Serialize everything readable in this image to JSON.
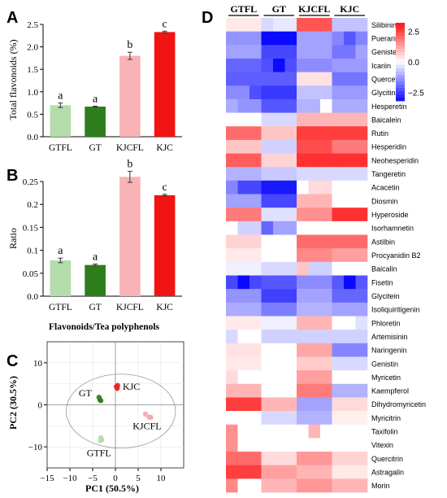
{
  "panels": {
    "A": "A",
    "B": "B",
    "C": "C",
    "D": "D"
  },
  "chart_data": [
    {
      "id": "A",
      "type": "bar",
      "categories": [
        "GTFL",
        "GT",
        "KJCFL",
        "KJC"
      ],
      "values": [
        0.7,
        0.67,
        1.8,
        2.33
      ],
      "errors": [
        0.05,
        0.01,
        0.08,
        0.02
      ],
      "letters": [
        "a",
        "a",
        "b",
        "c"
      ],
      "colors": [
        "#b5dcab",
        "#2e7d1d",
        "#f7b3b5",
        "#f21313"
      ],
      "ylabel": "Total flavonoids (%)",
      "ylim": [
        0,
        2.5
      ],
      "yticks": [
        0.0,
        0.5,
        1.0,
        1.5,
        2.0,
        2.5
      ],
      "ytick_labels": [
        "0.0",
        "0.5",
        "1.0",
        "1.5",
        "2.0",
        "2.5"
      ]
    },
    {
      "id": "B",
      "type": "bar",
      "categories": [
        "GTFL",
        "GT",
        "KJCFL",
        "KJC"
      ],
      "values": [
        0.078,
        0.068,
        0.26,
        0.22
      ],
      "errors": [
        0.005,
        0.002,
        0.012,
        0.002
      ],
      "letters": [
        "a",
        "a",
        "b",
        "c"
      ],
      "colors": [
        "#b5dcab",
        "#2e7d1d",
        "#f7b3b5",
        "#f21313"
      ],
      "ylabel": "Ratio",
      "xlabel": "Flavonoids/Tea polyphenols",
      "ylim": [
        0,
        0.25
      ],
      "yticks": [
        0.0,
        0.05,
        0.1,
        0.15,
        0.2,
        0.25
      ],
      "ytick_labels": [
        "0.0",
        "0.05",
        "0.1",
        "0.15",
        "0.2",
        "0.25"
      ]
    },
    {
      "id": "C",
      "type": "scatter",
      "xlabel": "PC1 (50.5%)",
      "ylabel": "PC2 (30.5%)",
      "xlim": [
        -15,
        15
      ],
      "ylim": [
        -15,
        15
      ],
      "xticks": [
        -15,
        -10,
        -5,
        0,
        5,
        10
      ],
      "yticks": [
        -10,
        0,
        10
      ],
      "groups": [
        {
          "name": "GT",
          "color": "#2e7d1d",
          "points": [
            [
              -3.6,
              1.8
            ],
            [
              -3.4,
              1.2
            ],
            [
              -3.2,
              1.0
            ]
          ]
        },
        {
          "name": "KJC",
          "color": "#e82020",
          "points": [
            [
              0.2,
              4.3
            ],
            [
              0.5,
              4.6
            ],
            [
              0.4,
              3.9
            ]
          ]
        },
        {
          "name": "KJCFL",
          "color": "#f4a9ac",
          "points": [
            [
              6.6,
              -2.2
            ],
            [
              7.4,
              -2.9
            ],
            [
              7.8,
              -3.0
            ]
          ]
        },
        {
          "name": "GTFL",
          "color": "#b5dcab",
          "points": [
            [
              -3.2,
              -7.8
            ],
            [
              -3.0,
              -8.3
            ],
            [
              -3.3,
              -8.5
            ]
          ]
        }
      ]
    },
    {
      "id": "D",
      "type": "heatmap",
      "groups": [
        "GTFL",
        "GT",
        "KJCFL",
        "KJC"
      ],
      "rows": [
        "Silibinin",
        "Puerarin",
        "Genistein",
        "Icariin",
        "Quercetin",
        "Glycitin",
        "Hesperetin",
        "Baicalein",
        "Rutin",
        "Hesperidin",
        "Neohesperidin",
        "Tangeretin",
        "Acacetin",
        "Diosmin",
        "Hyperoside",
        "Isorhamnetin",
        "Astilbin",
        "Procyanidin B2",
        "Baicalin",
        "Fisetin",
        "Glycitein",
        "Isoliquiritigenin",
        "Phloretin",
        "Artemisinin",
        "Naringenin",
        "Genistin",
        "Myricetin",
        "Kaempferol",
        "Dihydromyricetin",
        "Myricitrin",
        "Taxifolin",
        "Vitexin",
        "Quercitrin",
        "Astragalin",
        "Morin"
      ],
      "colorbar": {
        "ticks": [
          2.5,
          0.0,
          -2.5
        ],
        "tick_labels": [
          "2.5",
          "0.0",
          "−2.5"
        ],
        "min": -3.2,
        "max": 3.2
      },
      "values": [
        [
          0.3,
          0.3,
          0.3,
          -0.5,
          -0.3,
          -0.3,
          2.3,
          2.3,
          2.3,
          -0.8,
          -0.8,
          -0.8
        ],
        [
          -1.4,
          -1.4,
          -1.4,
          -3.2,
          -3.2,
          -3.2,
          -1.2,
          -1.2,
          -1.2,
          -1.6,
          -2.2,
          -1.6
        ],
        [
          -1.2,
          -1.2,
          -1.2,
          -2.4,
          -2.4,
          -2.4,
          -1.2,
          -1.2,
          -1.2,
          -1.8,
          -1.8,
          -1.2
        ],
        [
          -2.0,
          -2.0,
          -2.0,
          -2.3,
          -3.2,
          -2.3,
          -1.5,
          -1.5,
          -1.5,
          -1.3,
          -1.3,
          -1.3
        ],
        [
          -2.1,
          -2.1,
          -2.1,
          -2.1,
          -2.1,
          -2.1,
          0.4,
          0.4,
          0.4,
          -1.8,
          -1.8,
          -1.8
        ],
        [
          -1.5,
          -1.5,
          -2.3,
          -2.6,
          -2.6,
          -2.6,
          -0.8,
          -0.8,
          -0.8,
          -1.3,
          -1.3,
          -1.3
        ],
        [
          -1.1,
          -1.4,
          -1.4,
          -2.2,
          -2.2,
          -2.2,
          -1.0,
          -1.0,
          0.0,
          -1.1,
          -1.1,
          -1.1
        ],
        [
          0.0,
          0.0,
          0.0,
          -0.5,
          -0.5,
          -0.5,
          1.0,
          1.0,
          1.0,
          1.0,
          1.0,
          1.0
        ],
        [
          2.0,
          2.0,
          2.0,
          0.8,
          0.8,
          0.8,
          2.6,
          2.6,
          2.6,
          2.6,
          2.6,
          2.6
        ],
        [
          0.8,
          0.8,
          0.8,
          -0.6,
          -0.6,
          -0.6,
          2.4,
          2.4,
          2.4,
          1.8,
          1.8,
          1.8
        ],
        [
          2.2,
          2.2,
          2.2,
          0.6,
          0.6,
          0.6,
          2.8,
          2.8,
          2.8,
          2.8,
          2.8,
          2.8
        ],
        [
          -1.0,
          -1.0,
          -1.0,
          -0.7,
          -0.7,
          -0.7,
          -0.5,
          -0.5,
          -0.5,
          -0.5,
          -0.5,
          -0.5
        ],
        [
          -1.6,
          -2.4,
          -2.4,
          -3.0,
          -3.0,
          -3.0,
          0.0,
          0.5,
          0.5,
          0.0,
          0.0,
          0.0
        ],
        [
          -1.2,
          -1.2,
          -1.2,
          -2.4,
          -2.4,
          -2.4,
          1.0,
          1.0,
          1.0,
          0.0,
          0.0,
          0.0
        ],
        [
          1.8,
          1.8,
          1.8,
          -0.4,
          -0.4,
          -0.4,
          1.5,
          1.5,
          1.5,
          2.8,
          2.8,
          2.8
        ],
        [
          0.0,
          -0.6,
          -0.6,
          -2.0,
          -1.2,
          -1.2,
          0.0,
          0.0,
          0.0,
          0.0,
          0.0,
          0.0
        ],
        [
          0.6,
          0.6,
          0.6,
          0.0,
          0.0,
          0.0,
          2.0,
          2.0,
          2.0,
          2.0,
          2.0,
          2.0
        ],
        [
          0.3,
          0.3,
          0.3,
          0.0,
          0.0,
          0.0,
          1.6,
          1.6,
          1.6,
          1.3,
          1.3,
          1.3
        ],
        [
          -0.2,
          -0.2,
          -0.2,
          -0.5,
          -0.5,
          -0.5,
          0.8,
          -0.6,
          -0.6,
          0.0,
          0.0,
          0.0
        ],
        [
          -2.4,
          -3.2,
          -2.4,
          -2.2,
          -2.2,
          -2.2,
          -1.5,
          -1.5,
          -1.5,
          -2.2,
          -3.2,
          -2.2
        ],
        [
          -1.4,
          -1.4,
          -1.4,
          -2.5,
          -2.5,
          -2.5,
          -1.2,
          -1.2,
          -1.2,
          -2.0,
          -2.0,
          -2.0
        ],
        [
          -1.1,
          -1.1,
          -1.1,
          -1.7,
          -1.7,
          -1.7,
          -1.0,
          -1.0,
          -1.0,
          -1.2,
          -1.2,
          -1.2
        ],
        [
          0.3,
          0.3,
          0.3,
          -0.2,
          -0.2,
          -0.2,
          1.0,
          1.0,
          1.0,
          0.0,
          0.0,
          -0.4
        ],
        [
          -0.5,
          0.0,
          0.0,
          -0.6,
          -0.6,
          -0.6,
          -0.6,
          -0.6,
          -0.6,
          -0.6,
          -0.6,
          -0.6
        ],
        [
          0.4,
          0.4,
          0.4,
          0.0,
          0.0,
          0.0,
          1.2,
          1.2,
          1.2,
          -1.6,
          -1.6,
          -1.6
        ],
        [
          0.3,
          0.3,
          0.3,
          0.0,
          0.0,
          0.0,
          0.7,
          0.7,
          0.7,
          -0.5,
          -0.5,
          -0.5
        ],
        [
          0.5,
          0.0,
          0.0,
          0.0,
          0.0,
          0.0,
          1.3,
          1.3,
          1.3,
          0.0,
          0.0,
          0.0
        ],
        [
          1.0,
          1.0,
          1.0,
          0.0,
          0.0,
          0.0,
          1.8,
          1.8,
          1.8,
          -1.0,
          -1.0,
          -1.0
        ],
        [
          2.6,
          2.6,
          2.6,
          1.0,
          1.0,
          1.0,
          -1.2,
          -1.2,
          -1.2,
          0.5,
          0.5,
          0.5
        ],
        [
          0.0,
          0.0,
          0.0,
          -0.5,
          -0.5,
          -0.5,
          -1.0,
          -1.0,
          -1.0,
          0.2,
          0.2,
          0.2
        ],
        [
          1.5,
          0.0,
          0.0,
          0.0,
          0.0,
          0.0,
          0.0,
          1.0,
          0.0,
          0.0,
          0.0,
          0.0
        ],
        [
          1.5,
          0.0,
          0.0,
          0.0,
          0.0,
          0.0,
          0.0,
          0.0,
          0.0,
          0.0,
          0.0,
          0.0
        ],
        [
          2.0,
          2.0,
          2.0,
          0.5,
          0.5,
          0.5,
          1.4,
          1.4,
          1.4,
          0.6,
          0.6,
          0.6
        ],
        [
          2.6,
          2.6,
          2.6,
          1.3,
          1.3,
          1.3,
          1.0,
          1.0,
          1.0,
          0.3,
          0.3,
          0.3
        ],
        [
          1.6,
          0.0,
          0.0,
          1.0,
          1.0,
          1.0,
          1.4,
          1.4,
          1.4,
          1.0,
          1.0,
          1.0
        ]
      ]
    }
  ]
}
